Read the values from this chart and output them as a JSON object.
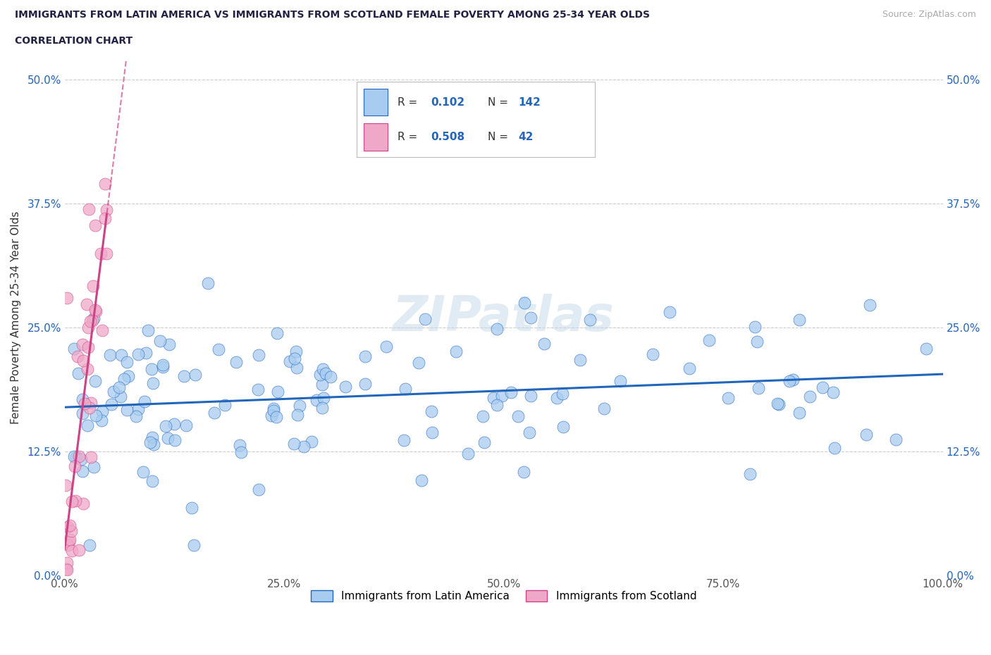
{
  "title_line1": "IMMIGRANTS FROM LATIN AMERICA VS IMMIGRANTS FROM SCOTLAND FEMALE POVERTY AMONG 25-34 YEAR OLDS",
  "title_line2": "CORRELATION CHART",
  "source": "Source: ZipAtlas.com",
  "ylabel": "Female Poverty Among 25-34 Year Olds",
  "xlim": [
    0.0,
    1.0
  ],
  "ylim": [
    0.0,
    0.52
  ],
  "yticks": [
    0.0,
    0.125,
    0.25,
    0.375,
    0.5
  ],
  "ytick_labels": [
    "0.0%",
    "12.5%",
    "25.0%",
    "37.5%",
    "50.0%"
  ],
  "xticks": [
    0.0,
    0.25,
    0.5,
    0.75,
    1.0
  ],
  "xtick_labels": [
    "0.0%",
    "25.0%",
    "50.0%",
    "75.0%",
    "100.0%"
  ],
  "color_blue": "#a8ccf0",
  "color_pink": "#f0a8c8",
  "color_blue_line": "#2266bb",
  "color_pink_line": "#cc4488",
  "color_blue_dark": "#2266bb",
  "legend_R1": "0.102",
  "legend_N1": "142",
  "legend_R2": "0.508",
  "legend_N2": "42",
  "legend_label1": "Immigrants from Latin America",
  "legend_label2": "Immigrants from Scotland",
  "watermark": "ZIPatlas",
  "title_color": "#222244",
  "source_color": "#aaaaaa",
  "grid_color": "#cccccc"
}
